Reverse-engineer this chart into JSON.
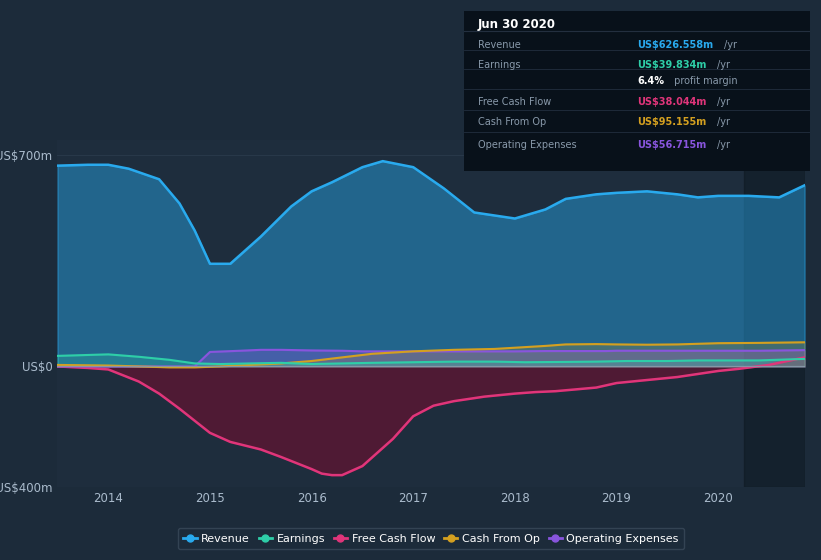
{
  "bg_color": "#1c2b3a",
  "plot_bg_color": "#1e2d3d",
  "ylim": [
    -400,
    750
  ],
  "xlim": [
    2013.5,
    2020.85
  ],
  "ytick_positions": [
    -400,
    0,
    700
  ],
  "ytick_labels": [
    "-US$400m",
    "US$0",
    "US$700m"
  ],
  "xticks": [
    2014,
    2015,
    2016,
    2017,
    2018,
    2019,
    2020
  ],
  "colors": {
    "revenue": "#29aaee",
    "earnings": "#2ecea8",
    "free_cash_flow": "#e0357a",
    "cash_from_op": "#d4a020",
    "operating_expenses": "#8855dd"
  },
  "info_box": {
    "title": "Jun 30 2020",
    "bg": "#08111a",
    "border": "#333344",
    "rows": [
      {
        "label": "Revenue",
        "value": "US$626.558m",
        "unit": "/yr",
        "value_color": "#29aaee"
      },
      {
        "label": "Earnings",
        "value": "US$39.834m",
        "unit": "/yr",
        "value_color": "#2ecea8"
      },
      {
        "label": "",
        "value": "6.4%",
        "unit": " profit margin",
        "value_color": "#ffffff"
      },
      {
        "label": "Free Cash Flow",
        "value": "US$38.044m",
        "unit": "/yr",
        "value_color": "#e0357a"
      },
      {
        "label": "Cash From Op",
        "value": "US$95.155m",
        "unit": "/yr",
        "value_color": "#d4a020"
      },
      {
        "label": "Operating Expenses",
        "value": "US$56.715m",
        "unit": "/yr",
        "value_color": "#8855dd"
      }
    ]
  },
  "revenue": {
    "x": [
      2013.5,
      2013.8,
      2014.0,
      2014.2,
      2014.5,
      2014.7,
      2014.85,
      2015.0,
      2015.2,
      2015.5,
      2015.8,
      2016.0,
      2016.2,
      2016.5,
      2016.7,
      2017.0,
      2017.3,
      2017.6,
      2018.0,
      2018.3,
      2018.5,
      2018.8,
      2019.0,
      2019.3,
      2019.6,
      2019.8,
      2020.0,
      2020.3,
      2020.6,
      2020.85
    ],
    "y": [
      665,
      668,
      668,
      655,
      620,
      540,
      450,
      340,
      340,
      430,
      530,
      580,
      610,
      660,
      680,
      660,
      590,
      510,
      490,
      520,
      555,
      570,
      575,
      580,
      570,
      560,
      565,
      565,
      560,
      600
    ]
  },
  "earnings": {
    "x": [
      2013.5,
      2014.0,
      2014.3,
      2014.6,
      2014.85,
      2015.1,
      2015.4,
      2015.7,
      2016.0,
      2016.3,
      2016.6,
      2017.0,
      2017.4,
      2017.8,
      2018.1,
      2018.5,
      2018.8,
      2019.1,
      2019.5,
      2019.8,
      2020.0,
      2020.4,
      2020.85
    ],
    "y": [
      35,
      40,
      32,
      22,
      10,
      8,
      10,
      12,
      8,
      10,
      12,
      14,
      16,
      16,
      14,
      15,
      16,
      18,
      18,
      20,
      20,
      20,
      25
    ]
  },
  "free_cash_flow": {
    "x": [
      2013.5,
      2013.8,
      2014.0,
      2014.3,
      2014.5,
      2014.7,
      2014.85,
      2015.0,
      2015.2,
      2015.5,
      2015.7,
      2016.0,
      2016.1,
      2016.2,
      2016.3,
      2016.5,
      2016.8,
      2017.0,
      2017.2,
      2017.4,
      2017.7,
      2018.0,
      2018.2,
      2018.4,
      2018.6,
      2018.8,
      2019.0,
      2019.3,
      2019.6,
      2019.9,
      2020.0,
      2020.2,
      2020.5,
      2020.85
    ],
    "y": [
      0,
      -5,
      -10,
      -50,
      -90,
      -140,
      -180,
      -220,
      -250,
      -275,
      -300,
      -340,
      -355,
      -360,
      -360,
      -330,
      -240,
      -165,
      -130,
      -115,
      -100,
      -90,
      -85,
      -82,
      -76,
      -70,
      -55,
      -45,
      -35,
      -20,
      -15,
      -8,
      5,
      30
    ]
  },
  "cash_from_op": {
    "x": [
      2013.5,
      2014.0,
      2014.3,
      2014.6,
      2014.85,
      2015.1,
      2015.4,
      2015.7,
      2016.0,
      2016.3,
      2016.6,
      2017.0,
      2017.4,
      2017.8,
      2018.0,
      2018.3,
      2018.5,
      2018.8,
      2019.0,
      2019.3,
      2019.6,
      2019.8,
      2020.0,
      2020.4,
      2020.85
    ],
    "y": [
      5,
      3,
      0,
      -3,
      -3,
      0,
      5,
      10,
      18,
      30,
      42,
      50,
      55,
      58,
      62,
      68,
      73,
      74,
      73,
      72,
      73,
      75,
      77,
      78,
      80
    ]
  },
  "operating_expenses": {
    "x": [
      2013.5,
      2014.0,
      2014.5,
      2014.85,
      2015.0,
      2015.3,
      2015.5,
      2015.7,
      2016.0,
      2016.3,
      2016.5,
      2016.8,
      2017.0,
      2017.4,
      2017.8,
      2018.0,
      2018.3,
      2018.6,
      2018.9,
      2019.0,
      2019.3,
      2019.6,
      2019.9,
      2020.0,
      2020.4,
      2020.85
    ],
    "y": [
      0,
      0,
      0,
      0,
      48,
      52,
      55,
      55,
      53,
      52,
      50,
      50,
      50,
      50,
      50,
      50,
      51,
      51,
      51,
      52,
      52,
      52,
      52,
      52,
      52,
      54
    ]
  },
  "legend": [
    {
      "label": "Revenue",
      "color": "#29aaee"
    },
    {
      "label": "Earnings",
      "color": "#2ecea8"
    },
    {
      "label": "Free Cash Flow",
      "color": "#e0357a"
    },
    {
      "label": "Cash From Op",
      "color": "#d4a020"
    },
    {
      "label": "Operating Expenses",
      "color": "#8855dd"
    }
  ]
}
